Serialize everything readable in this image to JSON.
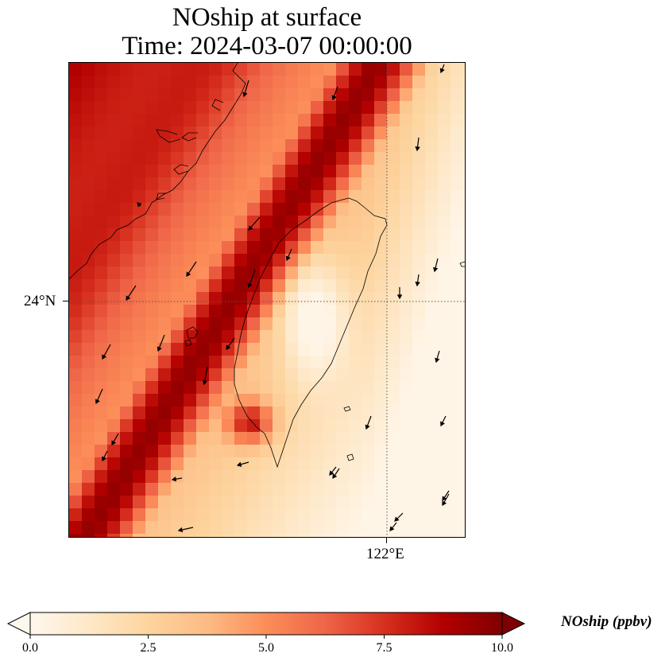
{
  "title": {
    "line1": "NOship at surface",
    "line2": "Time: 2024-03-07 00:00:00"
  },
  "map": {
    "lat_tick_label": "24°N",
    "lon_tick_label": "122°E",
    "field_name": "NOship",
    "colormap": [
      "#fff5eb",
      "#fee6ce",
      "#fdd0a2",
      "#fdae6b",
      "#fd8d3c",
      "#f16913",
      "#d94801",
      "#a63603",
      "#7f2704"
    ],
    "colormap_display": [
      "#fff7ec",
      "#fee8c8",
      "#fdd49e",
      "#fdbb84",
      "#fc8d59",
      "#ef6548",
      "#d7301f",
      "#b30000",
      "#7f0000"
    ]
  },
  "colorbar": {
    "label": "NOship (ppbv)",
    "ticks": [
      "0.0",
      "2.5",
      "5.0",
      "7.5",
      "10.0"
    ],
    "min": 0,
    "max": 10,
    "extend": "both"
  }
}
